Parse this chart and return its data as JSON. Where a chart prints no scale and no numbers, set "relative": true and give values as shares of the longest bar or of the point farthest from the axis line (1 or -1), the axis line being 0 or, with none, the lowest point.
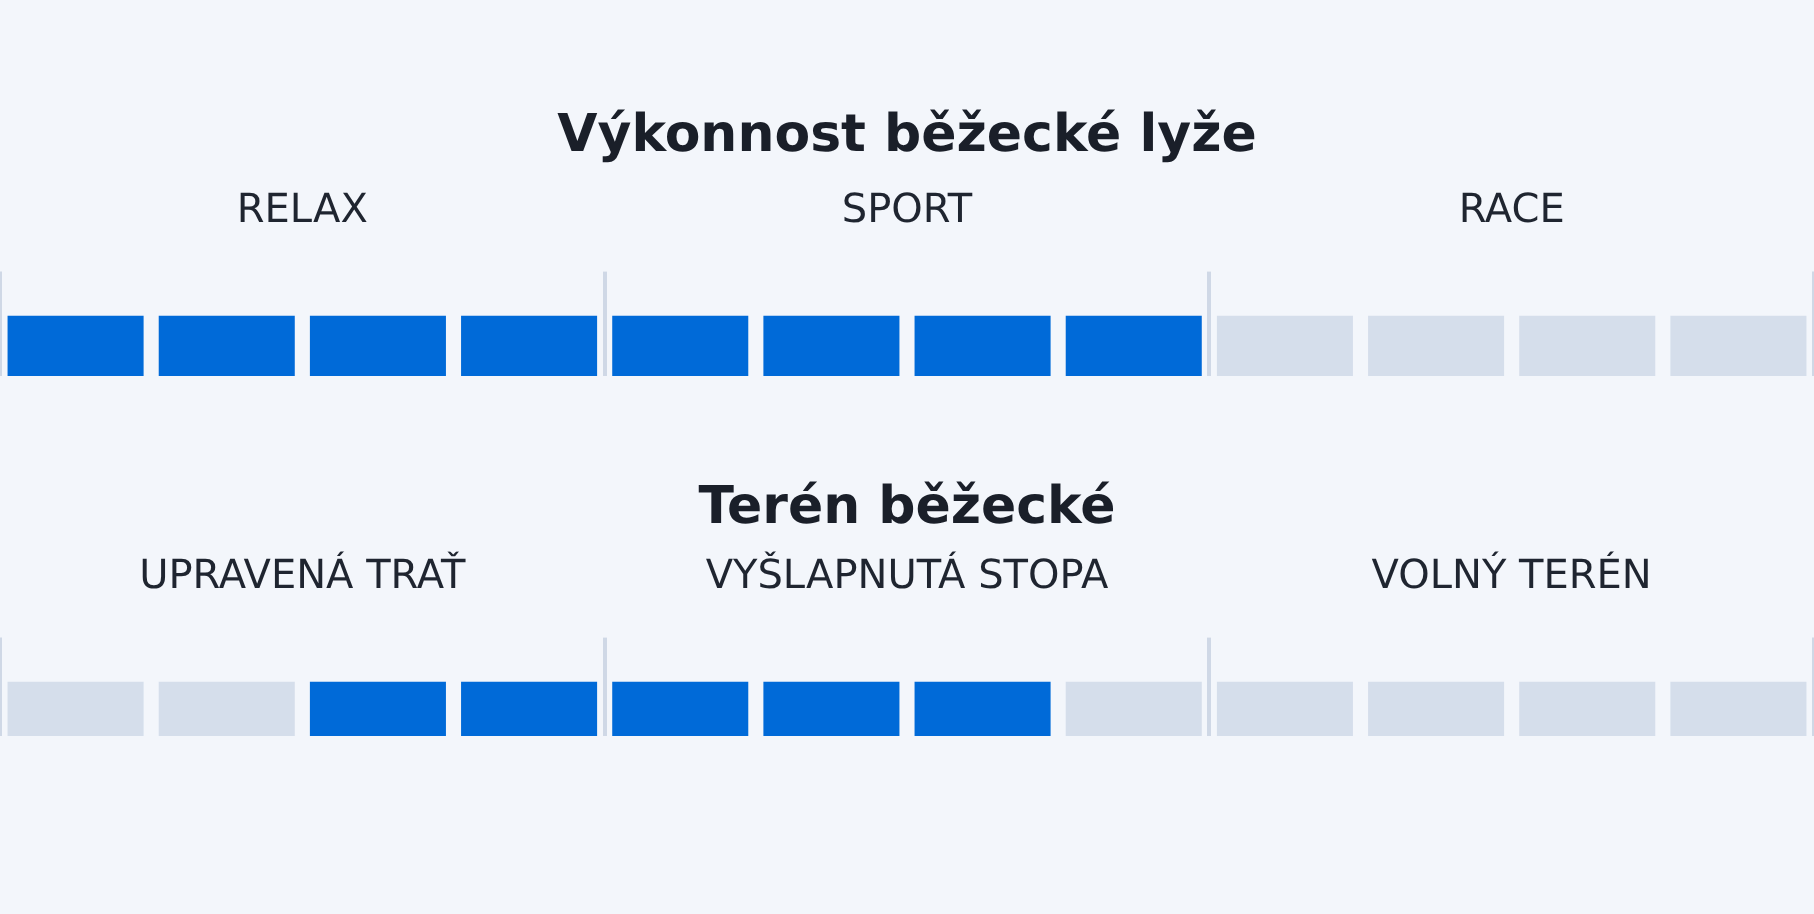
{
  "chart_data": [
    {
      "type": "bar",
      "title": "Výkonnost běžecké lyže",
      "categories": [
        "RELAX",
        "SPORT",
        "RACE"
      ],
      "relative": true,
      "grid": "x",
      "series": [
        {
          "colors": [
            "#006ad8",
            "#006ad8",
            "#d5deeb"
          ],
          "values": [
            1,
            1,
            1
          ]
        },
        {
          "colors": [
            "#006ad8",
            "#006ad8",
            "#d5deeb"
          ],
          "values": [
            1,
            1,
            1
          ]
        },
        {
          "colors": [
            "#006ad8",
            "#006ad8",
            "#d5deeb"
          ],
          "values": [
            1,
            1,
            1
          ]
        },
        {
          "colors": [
            "#006ad8",
            "#006ad8",
            "#d5deeb"
          ],
          "values": [
            1,
            1,
            1
          ]
        }
      ]
    },
    {
      "type": "bar",
      "title": "Terén běžecké",
      "categories": [
        "UPRAVENÁ TRAŤ",
        "VYŠLAPNUTÁ STOPA",
        "VOLNÝ TERÉN"
      ],
      "relative": true,
      "grid": "x",
      "series": [
        {
          "colors": [
            "#d5deeb",
            "#006ad8",
            "#d5deeb"
          ],
          "values": [
            1,
            1,
            1
          ]
        },
        {
          "colors": [
            "#d5deeb",
            "#006ad8",
            "#d5deeb"
          ],
          "values": [
            1,
            1,
            1
          ]
        },
        {
          "colors": [
            "#006ad8",
            "#006ad8",
            "#d5deeb"
          ],
          "values": [
            1,
            1,
            1
          ]
        },
        {
          "colors": [
            "#006ad8",
            "#d5deeb",
            "#d5deeb"
          ],
          "values": [
            1,
            1,
            1
          ]
        }
      ]
    }
  ]
}
